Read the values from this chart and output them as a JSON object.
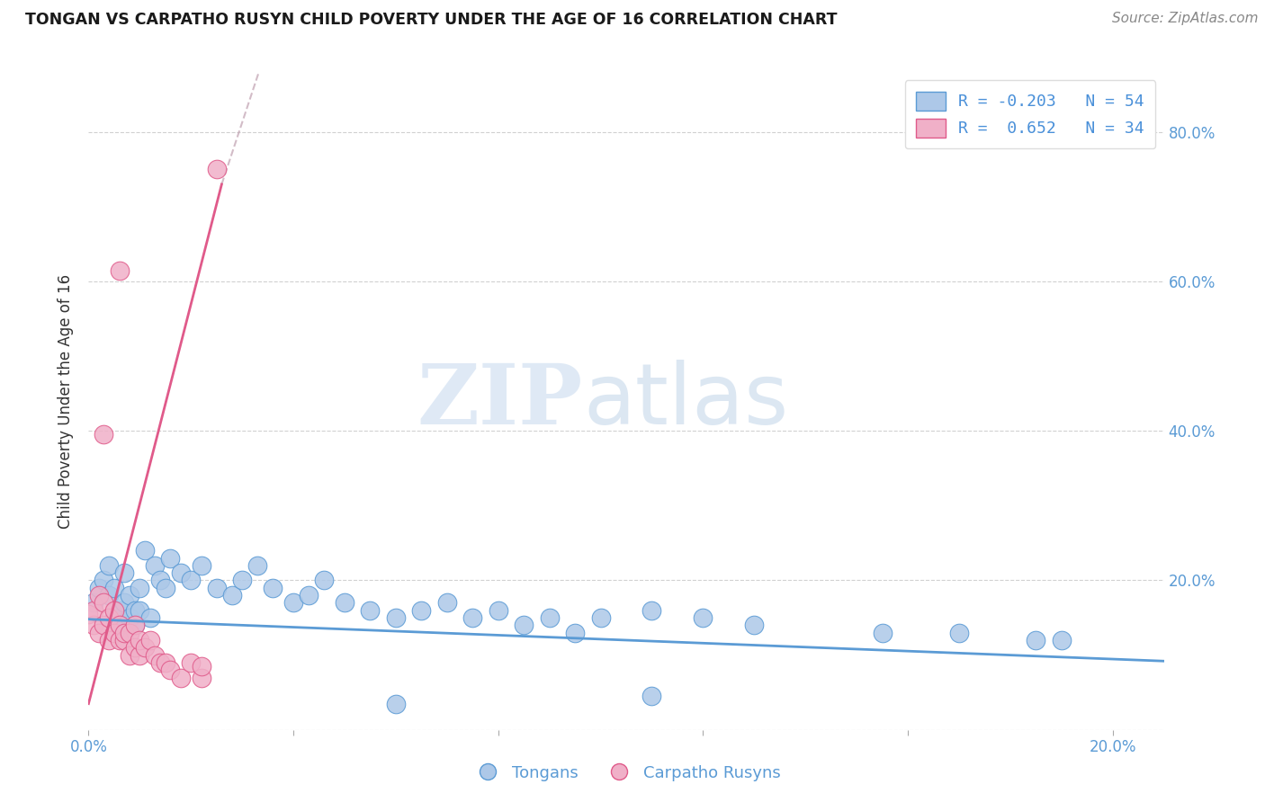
{
  "title": "TONGAN VS CARPATHO RUSYN CHILD POVERTY UNDER THE AGE OF 16 CORRELATION CHART",
  "source_text": "Source: ZipAtlas.com",
  "ylabel": "Child Poverty Under the Age of 16",
  "xlim": [
    0.0,
    0.21
  ],
  "ylim": [
    0.0,
    0.88
  ],
  "blue_color": "#5b9bd5",
  "pink_color": "#e05a8a",
  "blue_light": "#adc8e8",
  "pink_light": "#f0b0c8",
  "legend_bottom": [
    "Tongans",
    "Carpatho Rusyns"
  ],
  "watermark_zip": "ZIP",
  "watermark_atlas": "atlas",
  "tonga_line": [
    [
      0.0,
      0.21
    ],
    [
      0.148,
      0.092
    ]
  ],
  "rusyn_line_solid": [
    [
      0.0,
      0.026
    ],
    [
      0.035,
      0.73
    ]
  ],
  "rusyn_line_dash": [
    [
      0.026,
      0.16
    ],
    [
      0.73,
      3.5
    ]
  ],
  "tongans_x": [
    0.001,
    0.002,
    0.003,
    0.004,
    0.004,
    0.005,
    0.005,
    0.006,
    0.006,
    0.007,
    0.007,
    0.008,
    0.008,
    0.009,
    0.009,
    0.01,
    0.01,
    0.011,
    0.012,
    0.013,
    0.014,
    0.015,
    0.016,
    0.018,
    0.02,
    0.022,
    0.025,
    0.028,
    0.03,
    0.033,
    0.036,
    0.04,
    0.043,
    0.046,
    0.05,
    0.055,
    0.06,
    0.065,
    0.07,
    0.075,
    0.08,
    0.085,
    0.09,
    0.095,
    0.1,
    0.11,
    0.12,
    0.13,
    0.155,
    0.17,
    0.185,
    0.19,
    0.06,
    0.11
  ],
  "tongans_y": [
    0.17,
    0.19,
    0.2,
    0.18,
    0.22,
    0.15,
    0.19,
    0.16,
    0.14,
    0.17,
    0.21,
    0.15,
    0.18,
    0.14,
    0.16,
    0.16,
    0.19,
    0.24,
    0.15,
    0.22,
    0.2,
    0.19,
    0.23,
    0.21,
    0.2,
    0.22,
    0.19,
    0.18,
    0.2,
    0.22,
    0.19,
    0.17,
    0.18,
    0.2,
    0.17,
    0.16,
    0.15,
    0.16,
    0.17,
    0.15,
    0.16,
    0.14,
    0.15,
    0.13,
    0.15,
    0.16,
    0.15,
    0.14,
    0.13,
    0.13,
    0.12,
    0.12,
    0.035,
    0.045
  ],
  "rusyns_x": [
    0.0,
    0.001,
    0.001,
    0.002,
    0.002,
    0.003,
    0.003,
    0.004,
    0.004,
    0.005,
    0.005,
    0.006,
    0.006,
    0.007,
    0.007,
    0.008,
    0.008,
    0.009,
    0.009,
    0.01,
    0.01,
    0.011,
    0.012,
    0.013,
    0.014,
    0.015,
    0.016,
    0.018,
    0.02,
    0.022,
    0.003,
    0.006,
    0.022,
    0.025
  ],
  "rusyns_y": [
    0.155,
    0.14,
    0.16,
    0.13,
    0.18,
    0.14,
    0.17,
    0.12,
    0.15,
    0.13,
    0.16,
    0.12,
    0.14,
    0.12,
    0.13,
    0.1,
    0.13,
    0.11,
    0.14,
    0.1,
    0.12,
    0.11,
    0.12,
    0.1,
    0.09,
    0.09,
    0.08,
    0.07,
    0.09,
    0.07,
    0.395,
    0.615,
    0.085,
    0.75
  ]
}
